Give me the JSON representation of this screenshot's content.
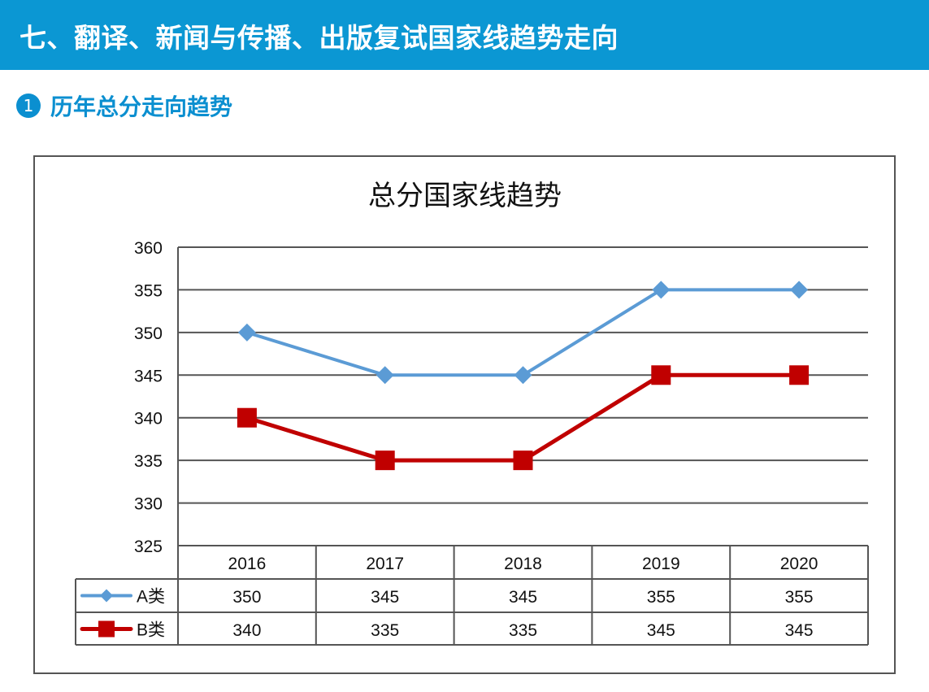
{
  "header": {
    "title": "七、翻译、新闻与传播、出版复试国家线趋势走向"
  },
  "section": {
    "number": "1",
    "title": "历年总分走向趋势"
  },
  "chart_data": {
    "type": "line",
    "title": "总分国家线趋势",
    "categories": [
      "2016",
      "2017",
      "2018",
      "2019",
      "2020"
    ],
    "series": [
      {
        "name": "A类",
        "values": [
          350,
          345,
          345,
          355,
          355
        ],
        "color": "#5b9bd5",
        "marker": "diamond"
      },
      {
        "name": "B类",
        "values": [
          340,
          335,
          335,
          345,
          345
        ],
        "color": "#c00000",
        "marker": "square"
      }
    ],
    "ylim": [
      325,
      360
    ],
    "yticks": [
      325,
      330,
      335,
      340,
      345,
      350,
      355,
      360
    ],
    "grid": true,
    "legend": "data-table"
  }
}
